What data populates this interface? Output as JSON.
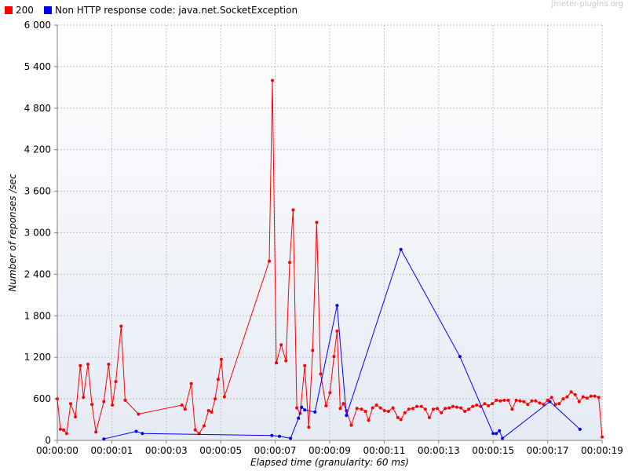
{
  "watermark": "jmeter-plugins.org",
  "legend": [
    {
      "label": "200",
      "color": "#ff0000"
    },
    {
      "label": "Non HTTP response code: java.net.SocketException",
      "color": "#0000ff"
    }
  ],
  "chart_data": {
    "type": "line",
    "title": "",
    "xlabel": "Elapsed time (granularity: 60 ms)",
    "ylabel": "Number of reponses /sec",
    "xlim": [
      0,
      19.2
    ],
    "ylim": [
      0,
      6000
    ],
    "grid": true,
    "legend_position": "top-left",
    "y_ticks": [
      0,
      600,
      1200,
      1800,
      2400,
      3000,
      3600,
      4200,
      4800,
      5400,
      6000
    ],
    "y_tick_labels": [
      "0",
      "600",
      "1 200",
      "1 800",
      "2 400",
      "3 000",
      "3 600",
      "4 200",
      "4 800",
      "5 400",
      "6 000"
    ],
    "x_ticks": [
      0,
      1.92,
      3.84,
      5.76,
      7.68,
      9.6,
      11.52,
      13.44,
      15.36,
      17.28,
      19.2
    ],
    "x_tick_labels": [
      "00:00:00",
      "00:00:01",
      "00:00:03",
      "00:00:05",
      "00:00:07",
      "00:00:09",
      "00:00:11",
      "00:00:13",
      "00:00:15",
      "00:00:17",
      "00:00:19"
    ],
    "series": [
      {
        "name": "200",
        "color": "#ff0000",
        "x": [
          0.0,
          0.11,
          0.22,
          0.33,
          0.47,
          0.64,
          0.81,
          0.92,
          1.08,
          1.22,
          1.36,
          1.64,
          1.81,
          1.94,
          2.06,
          2.25,
          2.39,
          2.86,
          4.39,
          4.5,
          4.72,
          4.86,
          5.0,
          5.17,
          5.33,
          5.44,
          5.56,
          5.67,
          5.78,
          5.89,
          7.47,
          7.58,
          7.72,
          7.89,
          8.06,
          8.19,
          8.31,
          8.44,
          8.56,
          8.72,
          8.86,
          9.0,
          9.14,
          9.28,
          9.47,
          9.61,
          9.75,
          9.86,
          9.97,
          10.08,
          10.19,
          10.36,
          10.56,
          10.72,
          10.86,
          10.97,
          11.11,
          11.25,
          11.39,
          11.53,
          11.67,
          11.83,
          12.0,
          12.11,
          12.25,
          12.39,
          12.53,
          12.67,
          12.83,
          12.97,
          13.11,
          13.25,
          13.39,
          13.53,
          13.67,
          13.81,
          13.94,
          14.08,
          14.22,
          14.36,
          14.5,
          14.64,
          14.78,
          14.92,
          15.06,
          15.19,
          15.33,
          15.47,
          15.61,
          15.75,
          15.89,
          16.03,
          16.17,
          16.31,
          16.44,
          16.58,
          16.72,
          16.86,
          17.0,
          17.14,
          17.28,
          17.42,
          17.56,
          17.69,
          17.83,
          17.97,
          18.11,
          18.25,
          18.39,
          18.53,
          18.67,
          18.81,
          18.94,
          19.08,
          19.2
        ],
        "y": [
          600,
          160,
          150,
          100,
          530,
          340,
          1080,
          620,
          1100,
          520,
          120,
          560,
          1100,
          510,
          850,
          1650,
          580,
          380,
          510,
          450,
          820,
          150,
          100,
          210,
          430,
          410,
          600,
          880,
          1170,
          630,
          2590,
          5200,
          1120,
          1380,
          1150,
          2570,
          3330,
          470,
          390,
          1080,
          190,
          1300,
          3150,
          960,
          500,
          690,
          1210,
          1580,
          460,
          530,
          430,
          220,
          460,
          450,
          420,
          290,
          470,
          510,
          470,
          430,
          420,
          470,
          330,
          300,
          400,
          450,
          460,
          490,
          490,
          450,
          330,
          450,
          460,
          400,
          460,
          470,
          490,
          480,
          470,
          420,
          450,
          490,
          510,
          490,
          530,
          500,
          530,
          580,
          570,
          580,
          580,
          450,
          580,
          570,
          560,
          520,
          570,
          570,
          540,
          520,
          580,
          620,
          520,
          530,
          600,
          630,
          700,
          660,
          560,
          630,
          610,
          640,
          640,
          620,
          50
        ]
      },
      {
        "name": "Non HTTP response code: java.net.SocketException",
        "color": "#0000ff",
        "x": [
          1.64,
          2.78,
          3.0,
          7.56,
          7.83,
          8.22,
          8.5,
          8.61,
          8.72,
          9.08,
          9.86,
          10.19,
          12.11,
          14.19,
          15.36,
          15.47,
          15.58,
          15.69,
          17.36,
          18.42
        ],
        "y": [
          20,
          130,
          100,
          70,
          60,
          30,
          320,
          480,
          440,
          410,
          1950,
          360,
          2760,
          1210,
          100,
          100,
          140,
          30,
          560,
          160
        ]
      }
    ]
  }
}
